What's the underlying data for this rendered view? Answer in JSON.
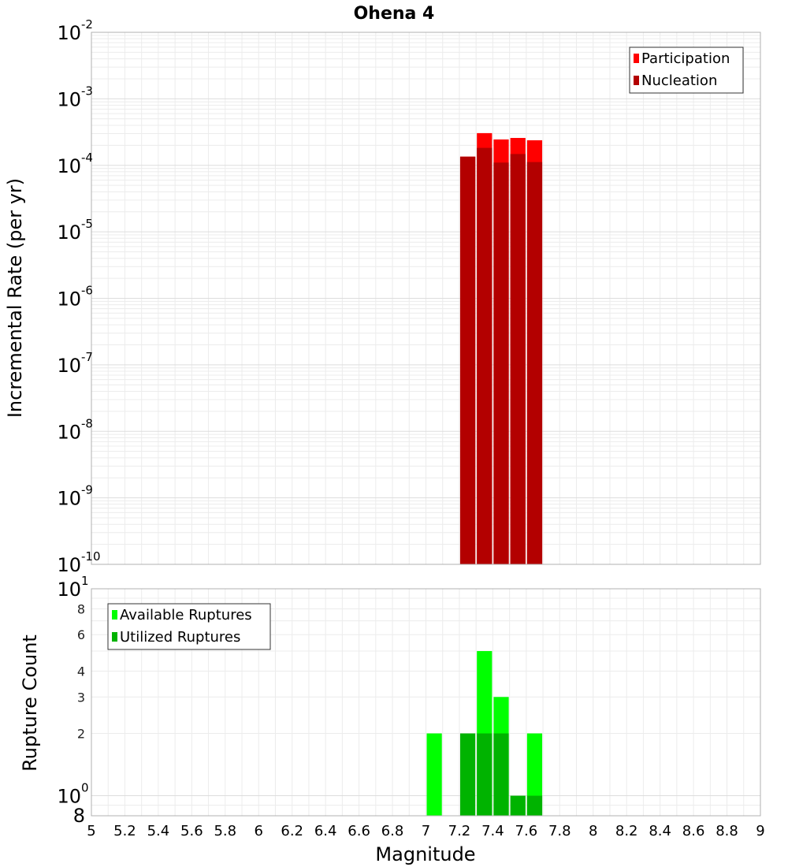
{
  "chart_data": {
    "type": "bar",
    "title": "Ohena 4",
    "xlabel": "Magnitude",
    "xlim": [
      5,
      9
    ],
    "x_ticks": [
      "5",
      "5.2",
      "5.4",
      "5.6",
      "5.8",
      "6",
      "6.2",
      "6.4",
      "6.6",
      "6.8",
      "7",
      "7.2",
      "7.4",
      "7.6",
      "7.8",
      "8",
      "8.2",
      "8.4",
      "8.6",
      "8.8",
      "9"
    ],
    "panels": [
      {
        "ylabel": "Incremental Rate (per yr)",
        "y_scale": "log",
        "ylim": [
          1e-10,
          0.01
        ],
        "y_major_ticks": [
          {
            "base": "10",
            "exp": "-10"
          },
          {
            "base": "10",
            "exp": "-9"
          },
          {
            "base": "10",
            "exp": "-8"
          },
          {
            "base": "10",
            "exp": "-7"
          },
          {
            "base": "10",
            "exp": "-6"
          },
          {
            "base": "10",
            "exp": "-5"
          },
          {
            "base": "10",
            "exp": "-4"
          },
          {
            "base": "10",
            "exp": "-3"
          },
          {
            "base": "10",
            "exp": "-2"
          }
        ],
        "grid": true,
        "legend_position": "top-right",
        "series": [
          {
            "name": "Participation",
            "color": "#ff0000",
            "points": [
              {
                "x": 7.25,
                "y": 0.000135
              },
              {
                "x": 7.35,
                "y": 0.000305
              },
              {
                "x": 7.45,
                "y": 0.000245
              },
              {
                "x": 7.55,
                "y": 0.000258
              },
              {
                "x": 7.65,
                "y": 0.000238
              }
            ]
          },
          {
            "name": "Nucleation",
            "color": "#b30000",
            "points": [
              {
                "x": 7.25,
                "y": 0.000135
              },
              {
                "x": 7.35,
                "y": 0.000183
              },
              {
                "x": 7.45,
                "y": 0.00011
              },
              {
                "x": 7.55,
                "y": 0.000148
              },
              {
                "x": 7.65,
                "y": 0.000112
              }
            ]
          }
        ]
      },
      {
        "ylabel": "Rupture Count",
        "y_scale": "log",
        "ylim": [
          0.8,
          10
        ],
        "y_major_ticks": [
          {
            "base": "10",
            "exp": "0"
          },
          {
            "base": "10",
            "exp": "1"
          }
        ],
        "y_minor_ticks": [
          "8",
          "2",
          "3",
          "4",
          "6",
          "8"
        ],
        "y_minor_values": [
          0.8,
          2,
          3,
          4,
          6,
          8
        ],
        "grid": true,
        "legend_position": "top-left",
        "series": [
          {
            "name": "Available Ruptures",
            "color": "#00ff00",
            "points": [
              {
                "x": 7.05,
                "y": 2
              },
              {
                "x": 7.35,
                "y": 5
              },
              {
                "x": 7.45,
                "y": 3
              },
              {
                "x": 7.65,
                "y": 2
              }
            ]
          },
          {
            "name": "Utilized Ruptures",
            "color": "#00b300",
            "points": [
              {
                "x": 7.25,
                "y": 2
              },
              {
                "x": 7.35,
                "y": 2
              },
              {
                "x": 7.45,
                "y": 2
              },
              {
                "x": 7.55,
                "y": 1
              },
              {
                "x": 7.65,
                "y": 1
              }
            ]
          }
        ]
      }
    ]
  }
}
